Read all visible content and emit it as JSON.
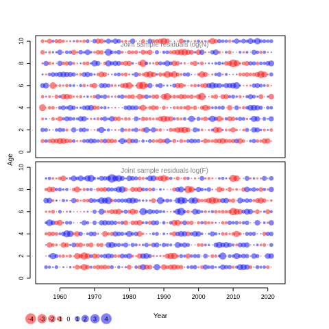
{
  "chart_data": [
    {
      "type": "scatter",
      "title": "Joint sample residuals log(N)",
      "ylabel": "Age",
      "xlabel": "",
      "x_range": [
        1955,
        2021
      ],
      "xlim": [
        1953,
        2025
      ],
      "ylim": [
        -0.5,
        10.5
      ],
      "yticks": [
        0,
        2,
        4,
        6,
        8,
        10
      ],
      "ages": [
        1,
        2,
        3,
        4,
        5,
        6,
        7,
        8,
        9,
        10
      ],
      "marker": "bubble, area proportional to |residual|",
      "pattern_seed": 11
    },
    {
      "type": "scatter",
      "title": "Joint sample residuals log(F)",
      "ylabel": "",
      "xlabel": "Year",
      "x_range": [
        1956,
        2021
      ],
      "xlim": [
        1953,
        2025
      ],
      "ylim": [
        -0.5,
        10.5
      ],
      "yticks": [
        0,
        2,
        4,
        6,
        8,
        10
      ],
      "xticks": [
        1960,
        1970,
        1980,
        1990,
        2000,
        2010,
        2020
      ],
      "ages": [
        1,
        2,
        3,
        4,
        5,
        6,
        7,
        8,
        9
      ],
      "marker": "bubble, area proportional to |residual|",
      "pattern_seed": 29
    }
  ],
  "shared_ylabel": "Age",
  "xaxis_label": "Year",
  "colors": {
    "positive": "#0000ff",
    "negative": "#ff0000",
    "bubble_opacity": 0.5,
    "title_text": "#808080"
  },
  "legend": {
    "values": [
      -4,
      -3,
      -2,
      -1,
      0,
      1,
      2,
      3,
      4
    ],
    "labels": [
      "-4",
      "-3",
      "-2",
      "-1",
      "0",
      "1",
      "2",
      "3",
      "4"
    ]
  }
}
